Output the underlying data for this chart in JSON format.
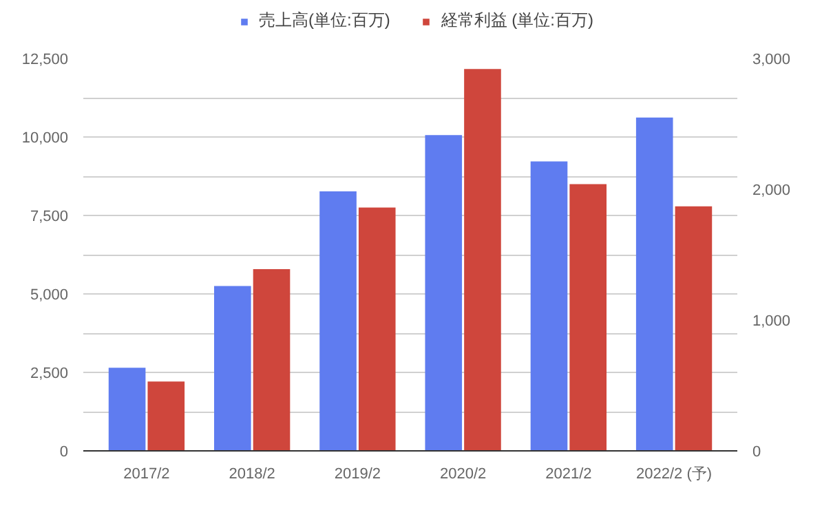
{
  "chart_data": {
    "type": "bar",
    "categories": [
      "2017/2",
      "2018/2",
      "2019/2",
      "2020/2",
      "2021/2",
      "2022/2 (予)"
    ],
    "series": [
      {
        "name": "売上高(単位:百万)",
        "color": "#5f7cf0",
        "values": [
          2650,
          5250,
          8270,
          10060,
          9220,
          10620
        ]
      },
      {
        "name": "経常利益 (単位:百万)",
        "color": "#cf463c",
        "axis": "y2",
        "values": [
          530,
          1390,
          1860,
          2920,
          2040,
          1870
        ]
      }
    ],
    "ylim": [
      0,
      12500
    ],
    "yticks": [
      0,
      {
        "value": 1250,
        "label": null
      },
      {
        "value": 2500,
        "label": "2,500"
      },
      {
        "value": 3750,
        "label": null
      },
      {
        "value": 5000,
        "label": "5,000"
      },
      {
        "value": 6250,
        "label": null
      },
      {
        "value": 7500,
        "label": "7,500"
      },
      {
        "value": 8750,
        "label": null
      },
      {
        "value": 10000,
        "label": "10,000"
      },
      {
        "value": 11250,
        "label": null
      },
      {
        "value": 12500,
        "label": "12,500"
      }
    ],
    "y2lim": [
      0,
      3000
    ],
    "y2ticks": [
      0,
      {
        "value": 1000,
        "label": "1,000"
      },
      {
        "value": 2000,
        "label": "2,000"
      },
      {
        "value": 3000,
        "label": "3,000"
      }
    ],
    "grid": "y",
    "legend": "top"
  }
}
